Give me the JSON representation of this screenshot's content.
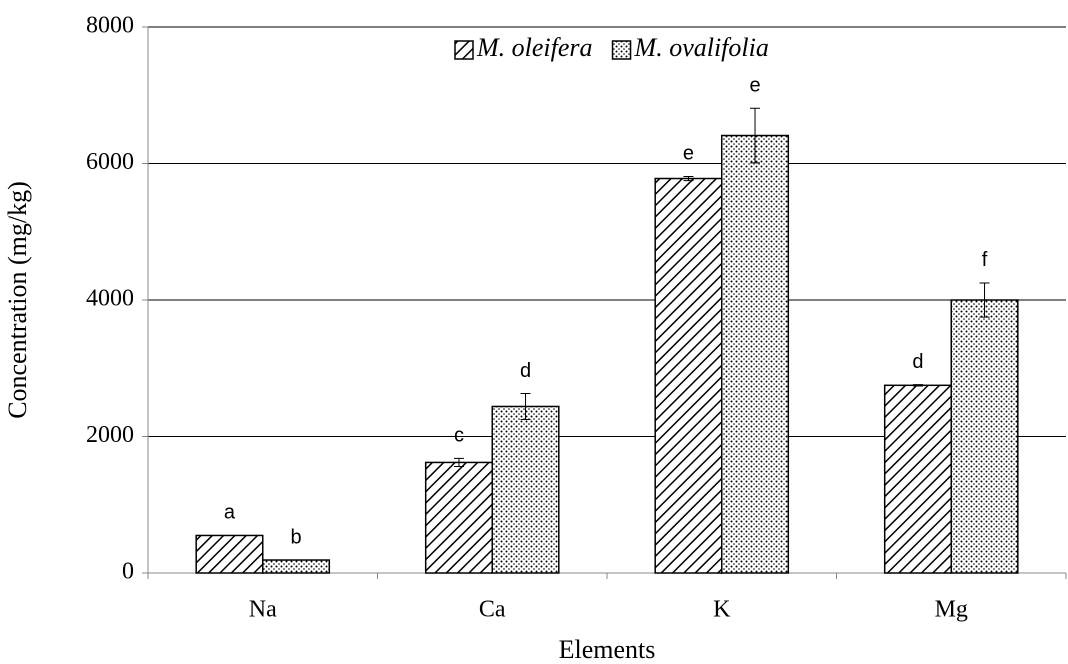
{
  "chart_data": {
    "type": "bar",
    "x_label": "Elements",
    "y_label": "Concentration (mg/kg)",
    "categories": [
      "Na",
      "Ca",
      "K",
      "Mg"
    ],
    "series": [
      {
        "name": "M. oleifera",
        "pattern": "diagonal-hatch",
        "color": "#000000",
        "values": [
          550,
          1620,
          5780,
          2750
        ],
        "errors": [
          0,
          60,
          30,
          10
        ],
        "letters": [
          "a",
          "c",
          "e",
          "d"
        ]
      },
      {
        "name": "M. ovalifolia",
        "pattern": "dots",
        "color": "#000000",
        "values": [
          190,
          2440,
          6410,
          4000
        ],
        "errors": [
          0,
          190,
          400,
          250
        ],
        "letters": [
          "b",
          "d",
          "e",
          "f"
        ]
      }
    ],
    "ylim": [
      0,
      8000
    ],
    "yticks": [
      0,
      2000,
      4000,
      6000,
      8000
    ],
    "grid": true,
    "legend": "top"
  }
}
